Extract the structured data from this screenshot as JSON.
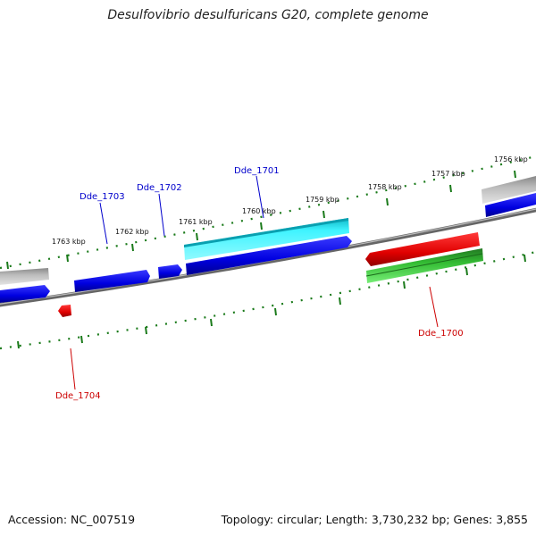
{
  "header": {
    "title": "Desulfovibrio desulfuricans G20, complete genome"
  },
  "footer": {
    "accession": "Accession: NC_007519",
    "topology": "Topology: circular; Length: 3,730,232 bp; Genes: 3,855"
  },
  "scale": {
    "labels": [
      "1756 kbp",
      "1757 kbp",
      "1758 kbp",
      "1759 kbp",
      "1760 kbp",
      "1761 kbp",
      "1762 kbp",
      "1763 kbp"
    ]
  },
  "genes": {
    "labels": [
      "Dde_1701",
      "Dde_1702",
      "Dde_1703",
      "Dde_1700",
      "Dde_1704"
    ],
    "colors": {
      "forward": "#0000ee",
      "reverse": "#ee0000",
      "rna_cyan": "#00e5ee",
      "rna_green": "#22bb22",
      "other": "#bbbbbb"
    }
  }
}
